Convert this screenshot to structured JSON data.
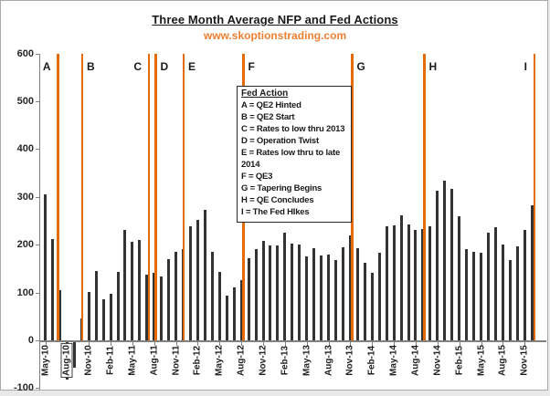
{
  "title": "Three Month Average NFP and Fed Actions",
  "subtitle": "www.skoptionstrading.com",
  "colors": {
    "fed_line_orange": "#e36c09",
    "subtitle_orange": "#ed8032",
    "bar": "#333333",
    "axis": "#808080",
    "label_text": "#262626",
    "frame_border": "#a9a9a9"
  },
  "legend": {
    "header": "Fed Action",
    "items": [
      "A = QE2 Hinted",
      "B = QE2 Start",
      "C = Rates to low thru 2013",
      "D = Operation Twist",
      "E = Rates low thru to late 2014",
      "F = QE3",
      "G = Tapering Begins",
      "H = QE Concludes",
      "I = The Fed HIkes"
    ]
  },
  "chart_data": {
    "type": "bar",
    "title": "Three Month Average NFP and Fed Actions",
    "subtitle": "www.skoptionstrading.com",
    "ylim": [
      -100,
      600
    ],
    "y_ticks": [
      600,
      500,
      400,
      300,
      200,
      100,
      0,
      -100
    ],
    "grid": false,
    "x_tick_labels": [
      "May-10",
      "Aug-10",
      "Nov-10",
      "Feb-11",
      "May-11",
      "Aug-11",
      "Nov-11",
      "Feb-12",
      "May-12",
      "Aug-12",
      "Nov-12",
      "Feb-13",
      "May-13",
      "Aug-13",
      "Nov-13",
      "Feb-14",
      "May-14",
      "Aug-14",
      "Nov-14",
      "Feb-15",
      "May-15",
      "Aug-15",
      "Nov-15"
    ],
    "highlighted_x_label": "Aug-10",
    "x": [
      "May-10",
      "Jun-10",
      "Jul-10",
      "Aug-10",
      "Sep-10",
      "Oct-10",
      "Nov-10",
      "Dec-10",
      "Jan-11",
      "Feb-11",
      "Mar-11",
      "Apr-11",
      "May-11",
      "Jun-11",
      "Jul-11",
      "Aug-11",
      "Sep-11",
      "Oct-11",
      "Nov-11",
      "Dec-11",
      "Jan-12",
      "Feb-12",
      "Mar-12",
      "Apr-12",
      "May-12",
      "Jun-12",
      "Jul-12",
      "Aug-12",
      "Sep-12",
      "Oct-12",
      "Nov-12",
      "Dec-12",
      "Jan-13",
      "Feb-13",
      "Mar-13",
      "Apr-13",
      "May-13",
      "Jun-13",
      "Jul-13",
      "Aug-13",
      "Sep-13",
      "Oct-13",
      "Nov-13",
      "Dec-13",
      "Jan-14",
      "Feb-14",
      "Mar-14",
      "Apr-14",
      "May-14",
      "Jun-14",
      "Jul-14",
      "Aug-14",
      "Sep-14",
      "Oct-14",
      "Nov-14",
      "Dec-14",
      "Jan-15",
      "Feb-15",
      "Mar-15",
      "Apr-15",
      "May-15",
      "Jun-15",
      "Jul-15",
      "Aug-15",
      "Sep-15",
      "Oct-15",
      "Nov-15",
      "Dec-15"
    ],
    "values": [
      305,
      211,
      105,
      -80,
      -55,
      45,
      101,
      145,
      86,
      97,
      144,
      230,
      206,
      210,
      137,
      142,
      134,
      169,
      185,
      191,
      238,
      252,
      272,
      185,
      144,
      93,
      110,
      125,
      172,
      190,
      208,
      198,
      198,
      225,
      203,
      201,
      176,
      193,
      178,
      179,
      167,
      195,
      220,
      193,
      163,
      142,
      183,
      238,
      241,
      262,
      242,
      231,
      233,
      238,
      313,
      334,
      316,
      260,
      190,
      185,
      184,
      226,
      236,
      200,
      168,
      196,
      230,
      282
    ],
    "annotations": [
      {
        "letter": "A",
        "position_index": 1.76,
        "label_side": "left"
      },
      {
        "letter": "B",
        "position_index": 5.09,
        "label_side": "right"
      },
      {
        "letter": "C",
        "position_index": 14.28,
        "label_side": "left"
      },
      {
        "letter": "D",
        "position_index": 15.22,
        "label_side": "right"
      },
      {
        "letter": "E",
        "position_index": 19.06,
        "label_side": "right"
      },
      {
        "letter": "F",
        "position_index": 27.3,
        "label_side": "right"
      },
      {
        "letter": "G",
        "position_index": 42.26,
        "label_side": "right"
      },
      {
        "letter": "H",
        "position_index": 52.2,
        "label_side": "right"
      },
      {
        "letter": "I",
        "position_index": 67.36,
        "label_side": "left"
      }
    ]
  }
}
